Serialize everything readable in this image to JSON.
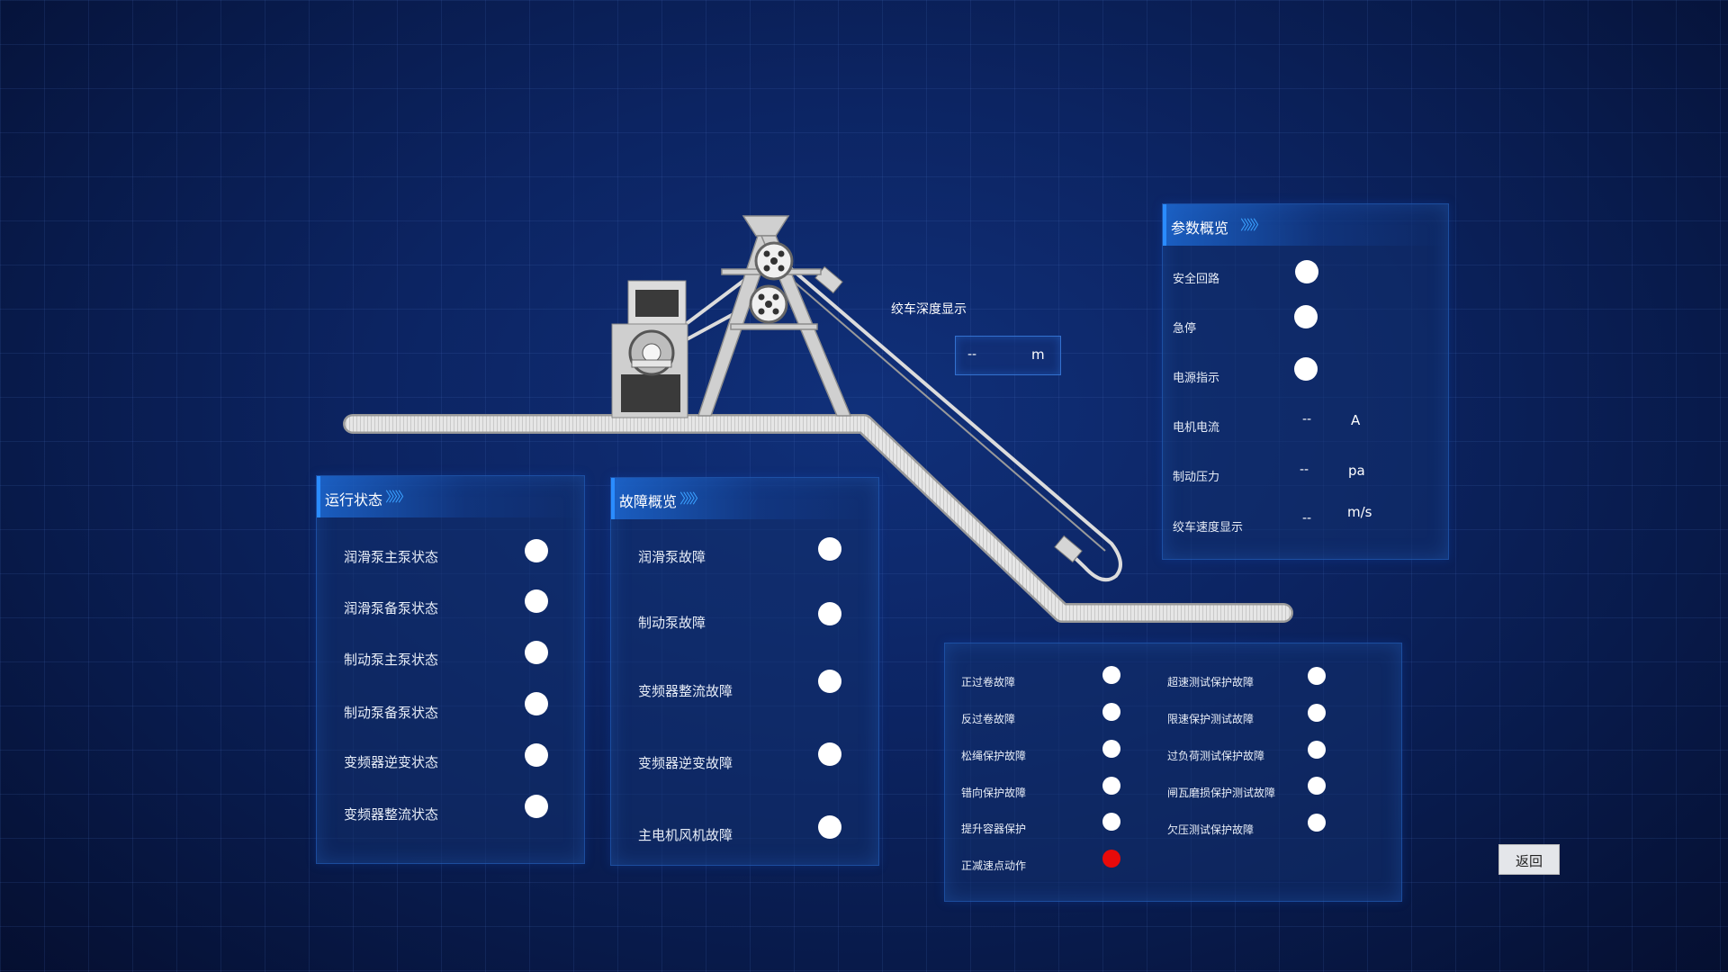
{
  "depth_display": {
    "title": "绞车深度显示",
    "value": "--",
    "unit": "m"
  },
  "params_panel": {
    "title": "参数概览",
    "rows": [
      {
        "label": "安全回路",
        "type": "indicator",
        "color": "#ffffff"
      },
      {
        "label": "急停",
        "type": "indicator",
        "color": "#ffffff"
      },
      {
        "label": "电源指示",
        "type": "indicator",
        "color": "#ffffff"
      },
      {
        "label": "电机电流",
        "type": "value",
        "value": "--",
        "unit": "A"
      },
      {
        "label": "制动压力",
        "type": "value",
        "value": "--",
        "unit": "pa"
      },
      {
        "label": "绞车速度显示",
        "type": "value",
        "value": "--",
        "unit": "m/s"
      }
    ]
  },
  "run_status_panel": {
    "title": "运行状态",
    "rows": [
      {
        "label": "润滑泵主泵状态",
        "color": "#ffffff"
      },
      {
        "label": "润滑泵备泵状态",
        "color": "#ffffff"
      },
      {
        "label": "制动泵主泵状态",
        "color": "#ffffff"
      },
      {
        "label": "制动泵备泵状态",
        "color": "#ffffff"
      },
      {
        "label": "变频器逆变状态",
        "color": "#ffffff"
      },
      {
        "label": "变频器整流状态",
        "color": "#ffffff"
      }
    ]
  },
  "fault_panel": {
    "title": "故障概览",
    "rows": [
      {
        "label": "润滑泵故障",
        "color": "#ffffff"
      },
      {
        "label": "制动泵故障",
        "color": "#ffffff"
      },
      {
        "label": "变频器整流故障",
        "color": "#ffffff"
      },
      {
        "label": "变频器逆变故障",
        "color": "#ffffff"
      },
      {
        "label": "主电机风机故障",
        "color": "#ffffff"
      }
    ]
  },
  "protection_panel": {
    "left": [
      {
        "label": "正过卷故障",
        "color": "#ffffff"
      },
      {
        "label": "反过卷故障",
        "color": "#ffffff"
      },
      {
        "label": "松绳保护故障",
        "color": "#ffffff"
      },
      {
        "label": "错向保护故障",
        "color": "#ffffff"
      },
      {
        "label": "提升容器保护",
        "color": "#ffffff"
      },
      {
        "label": "正减速点动作",
        "color": "#e80a0a"
      }
    ],
    "right": [
      {
        "label": "超速测试保护故障",
        "color": "#ffffff"
      },
      {
        "label": "限速保护测试故障",
        "color": "#ffffff"
      },
      {
        "label": "过负荷测试保护故障",
        "color": "#ffffff"
      },
      {
        "label": "闸瓦磨损保护测试故障",
        "color": "#ffffff"
      },
      {
        "label": "欠压测试保护故障",
        "color": "#ffffff"
      }
    ]
  },
  "back_button": {
    "label": "返回"
  }
}
